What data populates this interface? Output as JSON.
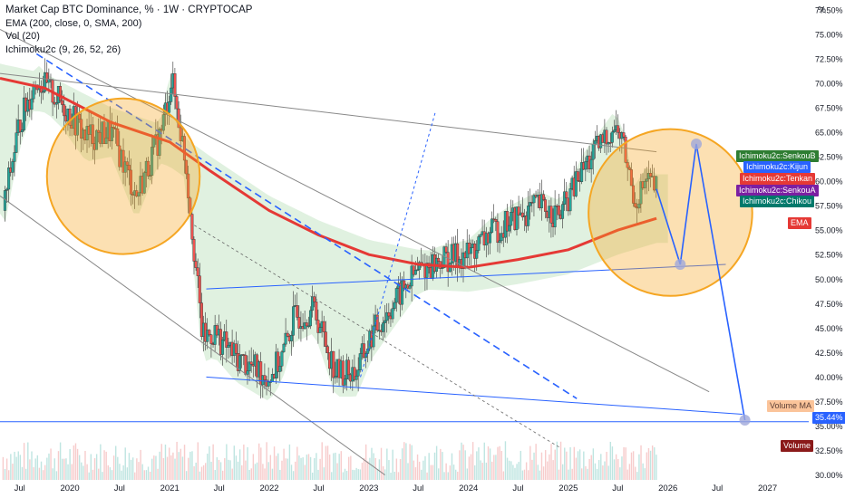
{
  "header": {
    "title": "Market Cap BTC Dominance, % · 1W · CRYPTOCAP",
    "indicators": [
      "EMA (200, close, 0, SMA, 200)",
      "Vol (20)",
      "Ichimoku2c (9, 26, 52, 26)"
    ]
  },
  "yaxis": {
    "unit": "%",
    "ticks": [
      "77.50%",
      "75.00%",
      "72.50%",
      "70.00%",
      "67.50%",
      "65.00%",
      "62.50%",
      "60.00%",
      "57.50%",
      "55.00%",
      "52.50%",
      "50.00%",
      "47.50%",
      "45.00%",
      "42.50%",
      "40.00%",
      "37.50%",
      "35.00%",
      "32.50%",
      "30.00%"
    ]
  },
  "xaxis": {
    "ticks": [
      "Jul",
      "2020",
      "Jul",
      "2021",
      "Jul",
      "2022",
      "Jul",
      "2023",
      "Jul",
      "2024",
      "Jul",
      "2025",
      "Jul",
      "2026",
      "Jul",
      "2027"
    ]
  },
  "tags": {
    "senkou_b": "Ichimoku2c:SenkouB",
    "kijun": "Ichimoku2c:Kijun",
    "tenkan": "Ichimoku2c:Tenkan",
    "senkou_a": "Ichimoku2c:SenkouA",
    "chikou": "Ichimoku2c:Chikou",
    "ema": "EMA",
    "volume_ma": "Volume MA",
    "price": "35.44%",
    "volume": "Volume"
  },
  "colors": {
    "up": "#26a69a",
    "down": "#ef5350",
    "ema": "#e53935",
    "trend": "#2962ff",
    "circle": "#f5a623",
    "cloud": "#a5d6a7"
  },
  "chart_data": {
    "type": "candlestick",
    "title": "Market Cap BTC Dominance, % · 1W · CRYPTOCAP",
    "ylim": [
      29.5,
      78.5
    ],
    "x_range": [
      "2019-04-20",
      "2027-06-01"
    ],
    "close_path": [
      [
        "2019-05-01",
        57.0
      ],
      [
        "2019-07-01",
        66.0
      ],
      [
        "2019-09-01",
        70.5
      ],
      [
        "2019-12-01",
        68.0
      ],
      [
        "2020-03-01",
        64.5
      ],
      [
        "2020-06-01",
        65.0
      ],
      [
        "2020-09-01",
        58.5
      ],
      [
        "2020-12-01",
        65.0
      ],
      [
        "2021-01-08",
        70.5
      ],
      [
        "2021-03-01",
        62.0
      ],
      [
        "2021-05-01",
        44.0
      ],
      [
        "2021-06-15",
        44.5
      ],
      [
        "2021-09-01",
        42.0
      ],
      [
        "2021-11-01",
        41.0
      ],
      [
        "2022-01-01",
        40.0
      ],
      [
        "2022-02-15",
        42.0
      ],
      [
        "2022-04-01",
        46.0
      ],
      [
        "2022-06-15",
        47.0
      ],
      [
        "2022-09-01",
        40.5
      ],
      [
        "2022-11-15",
        40.5
      ],
      [
        "2023-01-15",
        44.5
      ],
      [
        "2023-04-01",
        47.5
      ],
      [
        "2023-07-01",
        51.0
      ],
      [
        "2023-10-01",
        52.0
      ],
      [
        "2024-01-01",
        52.5
      ],
      [
        "2024-03-15",
        54.5
      ],
      [
        "2024-06-01",
        56.0
      ],
      [
        "2024-09-15",
        57.5
      ],
      [
        "2024-12-01",
        56.5
      ],
      [
        "2025-03-01",
        61.5
      ],
      [
        "2025-06-15",
        65.5
      ],
      [
        "2025-07-15",
        64.5
      ],
      [
        "2025-09-01",
        58.0
      ],
      [
        "2025-10-15",
        60.0
      ],
      [
        "2025-11-20",
        59.2
      ]
    ],
    "ema200": [
      [
        "2019-04-20",
        70.5
      ],
      [
        "2019-10-01",
        69.5
      ],
      [
        "2020-06-01",
        66.0
      ],
      [
        "2021-01-01",
        64.0
      ],
      [
        "2021-06-01",
        61.0
      ],
      [
        "2022-01-01",
        57.0
      ],
      [
        "2022-07-01",
        54.5
      ],
      [
        "2023-01-01",
        52.5
      ],
      [
        "2023-07-01",
        51.5
      ],
      [
        "2024-01-01",
        51.2
      ],
      [
        "2024-07-01",
        52.0
      ],
      [
        "2025-01-01",
        53.0
      ],
      [
        "2025-07-01",
        55.0
      ],
      [
        "2025-11-20",
        56.2
      ]
    ],
    "projection": [
      [
        "2025-11-20",
        59.2
      ],
      [
        "2026-02-15",
        51.5
      ],
      [
        "2026-04-15",
        63.8
      ],
      [
        "2026-10-10",
        35.6
      ]
    ],
    "circles": [
      {
        "center": [
          "2020-07-15",
          60.5
        ],
        "radius_days": 280
      },
      {
        "center": [
          "2026-01-10",
          56.8
        ],
        "radius_days": 300
      }
    ],
    "current_value": 35.44
  }
}
